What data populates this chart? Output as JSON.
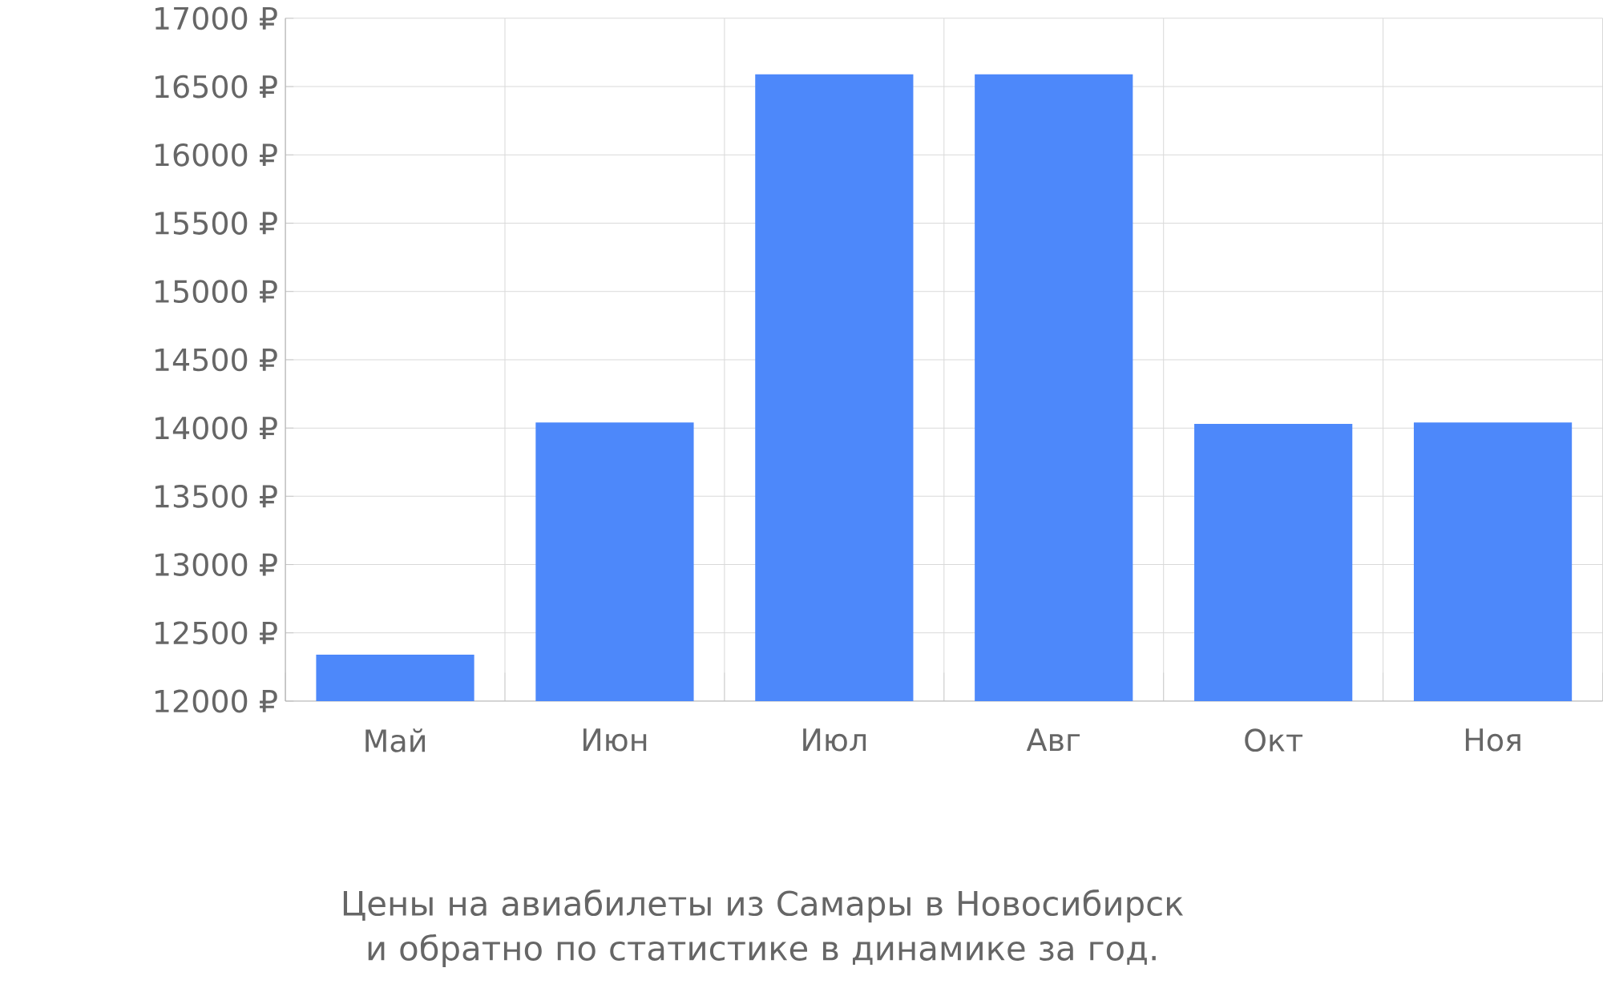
{
  "chart_data": {
    "type": "bar",
    "categories": [
      "Май",
      "Июн",
      "Июл",
      "Авг",
      "Окт",
      "Ноя"
    ],
    "values": [
      12340,
      14040,
      16590,
      16590,
      14030,
      14040
    ],
    "color": "#4d88fa",
    "ylim": [
      12000,
      17000
    ],
    "yticks": [
      {
        "value": 12000,
        "label": "12000 ₽"
      },
      {
        "value": 12500,
        "label": "12500 ₽"
      },
      {
        "value": 13000,
        "label": "13000 ₽"
      },
      {
        "value": 13500,
        "label": "13500 ₽"
      },
      {
        "value": 14000,
        "label": "14000 ₽"
      },
      {
        "value": 14500,
        "label": "14500 ₽"
      },
      {
        "value": 15000,
        "label": "15000 ₽"
      },
      {
        "value": 15500,
        "label": "15500 ₽"
      },
      {
        "value": 16000,
        "label": "16000 ₽"
      },
      {
        "value": 16500,
        "label": "16500 ₽"
      },
      {
        "value": 17000,
        "label": "17000 ₽"
      }
    ],
    "grid": true,
    "annotations": [
      "Цены на авиабилеты из Самары в Новосибирск и обратно по статистике в динамике за год."
    ]
  }
}
